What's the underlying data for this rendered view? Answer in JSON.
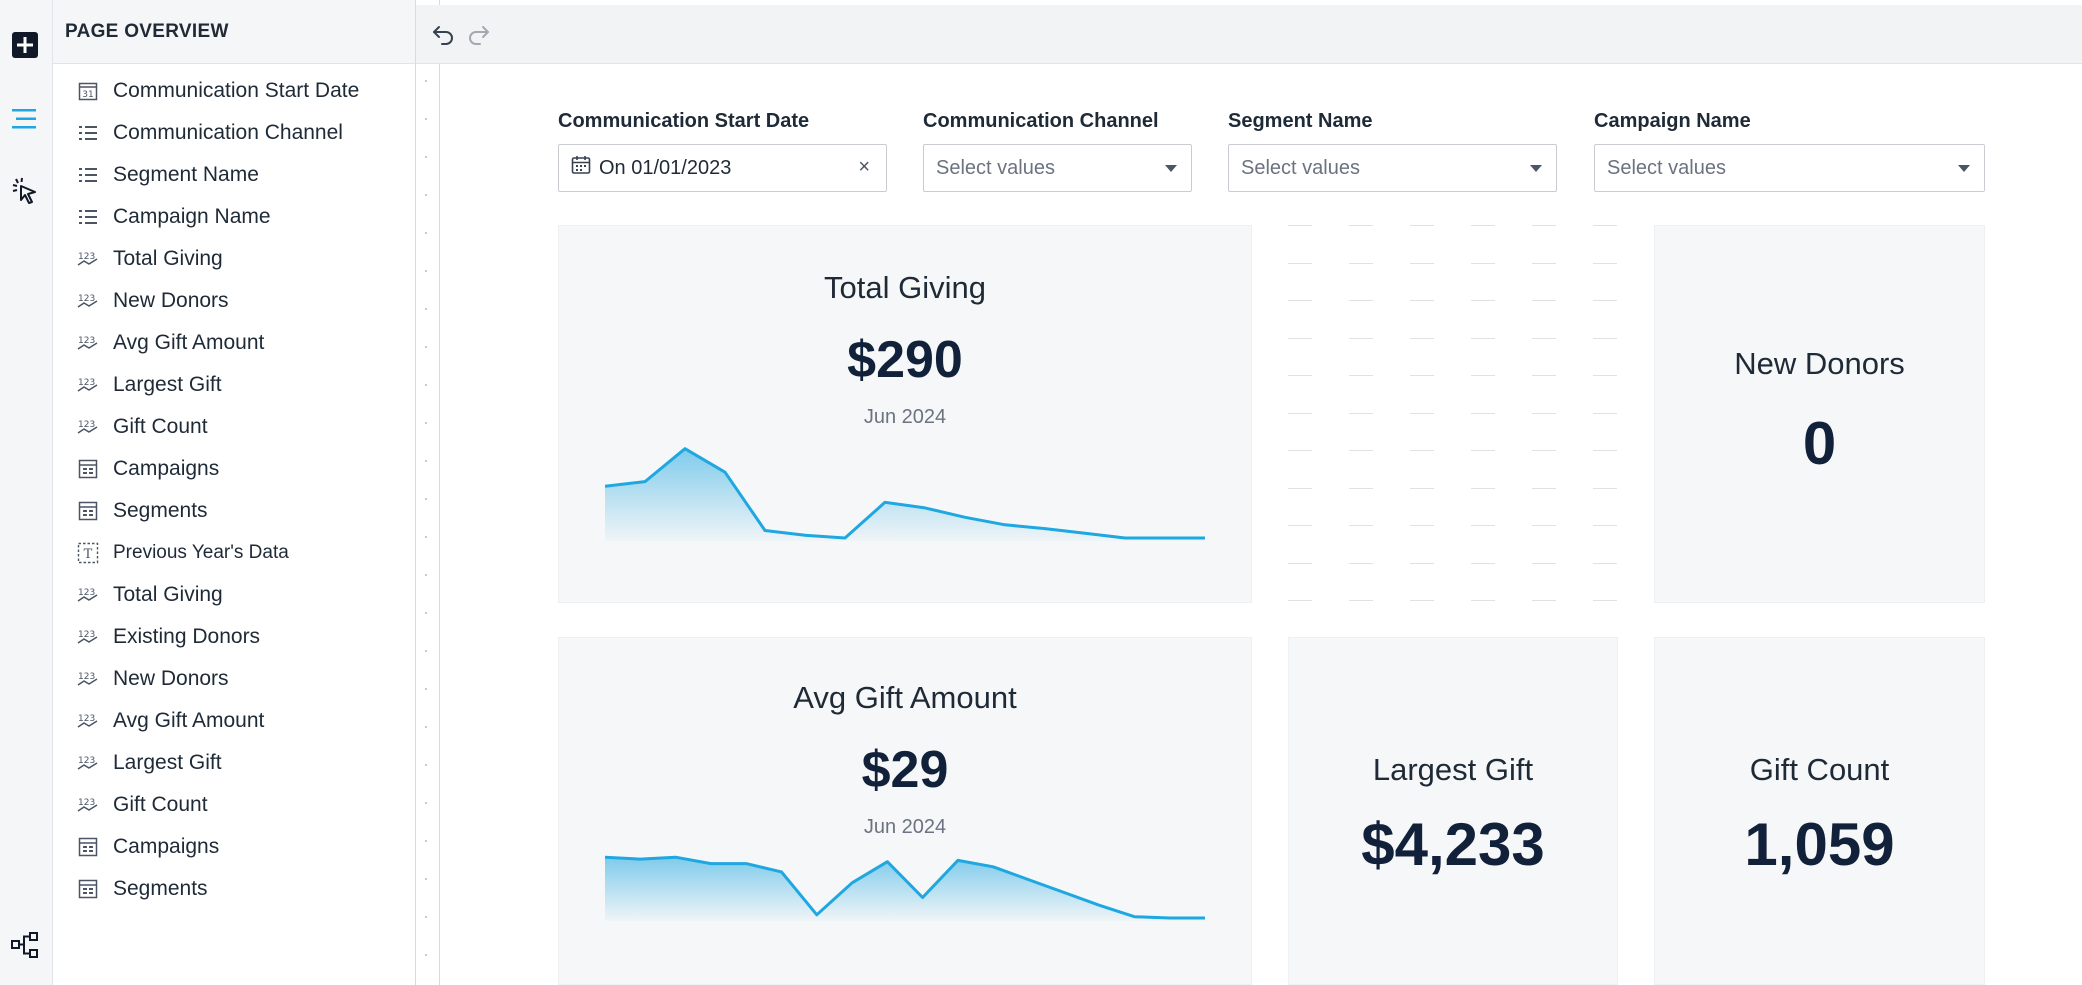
{
  "rail": {
    "add_icon": "plus-square-icon",
    "overview_icon": "list-lines-icon",
    "interact_icon": "cursor-click-icon",
    "tree_icon": "hierarchy-icon",
    "accent": "#1ea7e1"
  },
  "overview": {
    "title": "PAGE OVERVIEW",
    "items": [
      {
        "label": "Communication Start Date",
        "icon": "calendar-icon"
      },
      {
        "label": "Communication Channel",
        "icon": "list-filter-icon"
      },
      {
        "label": "Segment Name",
        "icon": "list-filter-icon"
      },
      {
        "label": "Campaign Name",
        "icon": "list-filter-icon"
      },
      {
        "label": "Total Giving",
        "icon": "kpi-123-icon"
      },
      {
        "label": "New Donors",
        "icon": "kpi-123-icon"
      },
      {
        "label": "Avg Gift Amount",
        "icon": "kpi-123-icon"
      },
      {
        "label": "Largest Gift",
        "icon": "kpi-123-icon"
      },
      {
        "label": "Gift Count",
        "icon": "kpi-123-icon"
      },
      {
        "label": "Campaigns",
        "icon": "table-icon"
      },
      {
        "label": "Segments",
        "icon": "table-icon"
      },
      {
        "label": "Previous Year's Data",
        "icon": "text-box-icon"
      },
      {
        "label": "Total Giving",
        "icon": "kpi-123-icon"
      },
      {
        "label": "Existing Donors",
        "icon": "kpi-123-icon"
      },
      {
        "label": "New Donors",
        "icon": "kpi-123-icon"
      },
      {
        "label": "Avg Gift Amount",
        "icon": "kpi-123-icon"
      },
      {
        "label": "Largest Gift",
        "icon": "kpi-123-icon"
      },
      {
        "label": "Gift Count",
        "icon": "kpi-123-icon"
      },
      {
        "label": "Campaigns",
        "icon": "table-icon"
      },
      {
        "label": "Segments",
        "icon": "table-icon"
      }
    ]
  },
  "toolbar": {
    "undo_icon": "undo-icon",
    "redo_icon": "redo-icon"
  },
  "filters": {
    "start_date": {
      "label": "Communication Start Date",
      "value": "On 01/01/2023",
      "icon": "calendar-icon",
      "clear": "×"
    },
    "channel": {
      "label": "Communication Channel",
      "placeholder": "Select values"
    },
    "segment": {
      "label": "Segment Name",
      "placeholder": "Select values"
    },
    "campaign": {
      "label": "Campaign Name",
      "placeholder": "Select values"
    }
  },
  "kpis": {
    "total_giving": {
      "title": "Total Giving",
      "value": "$290",
      "period": "Jun 2024"
    },
    "new_donors": {
      "title": "New Donors",
      "value": "0"
    },
    "avg_gift": {
      "title": "Avg Gift Amount",
      "value": "$29",
      "period": "Jun 2024"
    },
    "largest_gift": {
      "title": "Largest Gift",
      "value": "$4,233"
    },
    "gift_count": {
      "title": "Gift Count",
      "value": "1,059"
    }
  },
  "chart_data": [
    {
      "type": "area",
      "title": "",
      "series": [
        {
          "values": [
            0.55,
            0.6,
            0.95,
            0.7,
            0.08,
            0.03,
            0.0,
            0.38,
            0.32,
            0.22,
            0.14,
            0.1,
            0.05,
            0.0,
            0.0,
            0.0
          ]
        }
      ],
      "ylim": [
        0,
        1
      ],
      "grid": false,
      "color": "#1ea7e1"
    },
    {
      "type": "area",
      "title": "",
      "series": [
        {
          "values": [
            0.95,
            0.92,
            0.95,
            0.85,
            0.85,
            0.72,
            0.05,
            0.55,
            0.88,
            0.32,
            0.9,
            0.8,
            0.6,
            0.4,
            0.2,
            0.02,
            0.0,
            0.0
          ]
        }
      ],
      "ylim": [
        0,
        1
      ],
      "grid": false,
      "color": "#1ea7e1"
    }
  ]
}
